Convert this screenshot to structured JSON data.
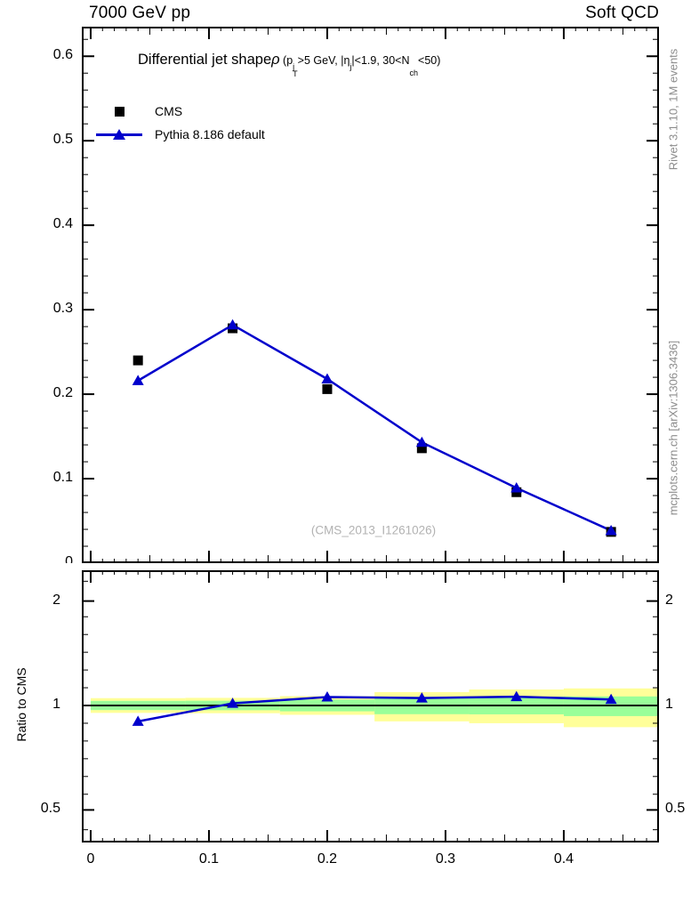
{
  "header": {
    "left": "7000 GeV pp",
    "right": "Soft QCD"
  },
  "title_segments": [
    {
      "text": "Differential jet shape",
      "style": "t-main"
    },
    {
      "text": "ρ",
      "style": "t-main it"
    },
    {
      "text": " (p",
      "style": "t-cond"
    },
    {
      "sup": "j",
      "sub": "T",
      "style": "ss"
    },
    {
      "text": ">5 GeV, |η",
      "style": "t-cond"
    },
    {
      "sup": "j",
      "sub": "",
      "style": "ss"
    },
    {
      "text": "|<1.9, 30<N",
      "style": "t-cond"
    },
    {
      "sup": "",
      "sub": "ch",
      "style": "ss"
    },
    {
      "text": "<50)",
      "style": "t-cond"
    }
  ],
  "legend": {
    "items": [
      {
        "label": "CMS",
        "marker": "square",
        "color": "#000000"
      },
      {
        "label": "Pythia 8.186 default",
        "marker": "triangle-line",
        "color": "#0000cc"
      }
    ]
  },
  "watermark": "(CMS_2013_I1261026)",
  "side_notes": {
    "top": "Rivet 3.1.10,  1M events",
    "bottom": "mcplots.cern.ch [arXiv:1306.3436]"
  },
  "ratio_axis_title": "Ratio to CMS",
  "colors": {
    "mc_blue": "#0000cc",
    "data_black": "#000000",
    "band_yellow": "#ffff99",
    "band_green": "#99ff99",
    "gray_text": "#8c8c8c",
    "watermark_gray": "#b2b2b2"
  },
  "chart_data": {
    "type": "line",
    "title": "Differential jet shape rho (pT_jet>5 GeV, |eta_jet|<1.9, 30<Nch<50)",
    "xlabel": "",
    "ylabel": "",
    "xlim": [
      -0.0075,
      0.4805
    ],
    "ylim": [
      0,
      0.635
    ],
    "x_ticks": [
      0,
      0.1,
      0.2,
      0.3,
      0.4
    ],
    "x_tick_labels": [
      "0",
      "0.1",
      "0.2",
      "0.3",
      "0.4"
    ],
    "y_ticks": [
      0,
      0.1,
      0.2,
      0.3,
      0.4,
      0.5,
      0.6
    ],
    "y_tick_labels": [
      "0",
      "0.1",
      "0.2",
      "0.3",
      "0.4",
      "0.5",
      "0.6"
    ],
    "x": [
      0.04,
      0.12,
      0.2,
      0.28,
      0.36,
      0.44
    ],
    "series": [
      {
        "name": "CMS",
        "marker": "square",
        "color": "#000000",
        "line": false,
        "values": [
          0.24,
          0.278,
          0.206,
          0.136,
          0.084,
          0.037
        ]
      },
      {
        "name": "Pythia 8.186 default",
        "marker": "triangle",
        "color": "#0000cc",
        "line": true,
        "values": [
          0.216,
          0.282,
          0.218,
          0.143,
          0.089,
          0.0385
        ]
      }
    ],
    "ratio": {
      "label": "Ratio to CMS",
      "scale": "log",
      "ylim": [
        0.403,
        2.452
      ],
      "y_ticks": [
        0.5,
        1,
        2
      ],
      "y_tick_labels": [
        "0.5",
        "1",
        "2"
      ],
      "reference_line": 1,
      "points": [
        0.9,
        1.014,
        1.058,
        1.051,
        1.06,
        1.041
      ],
      "bands": [
        {
          "xlo": 0.0,
          "xhi": 0.08,
          "yellow": [
            0.952,
            1.05
          ],
          "green": [
            0.97,
            1.031
          ]
        },
        {
          "xlo": 0.08,
          "xhi": 0.16,
          "yellow": [
            0.95,
            1.052
          ],
          "green": [
            0.969,
            1.032
          ]
        },
        {
          "xlo": 0.16,
          "xhi": 0.24,
          "yellow": [
            0.94,
            1.064
          ],
          "green": [
            0.962,
            1.04
          ]
        },
        {
          "xlo": 0.24,
          "xhi": 0.32,
          "yellow": [
            0.9,
            1.093
          ],
          "green": [
            0.944,
            1.06
          ]
        },
        {
          "xlo": 0.32,
          "xhi": 0.4,
          "yellow": [
            0.889,
            1.112
          ],
          "green": [
            0.943,
            1.061
          ]
        },
        {
          "xlo": 0.4,
          "xhi": 0.48,
          "yellow": [
            0.866,
            1.12
          ],
          "green": [
            0.932,
            1.062
          ]
        }
      ]
    }
  }
}
